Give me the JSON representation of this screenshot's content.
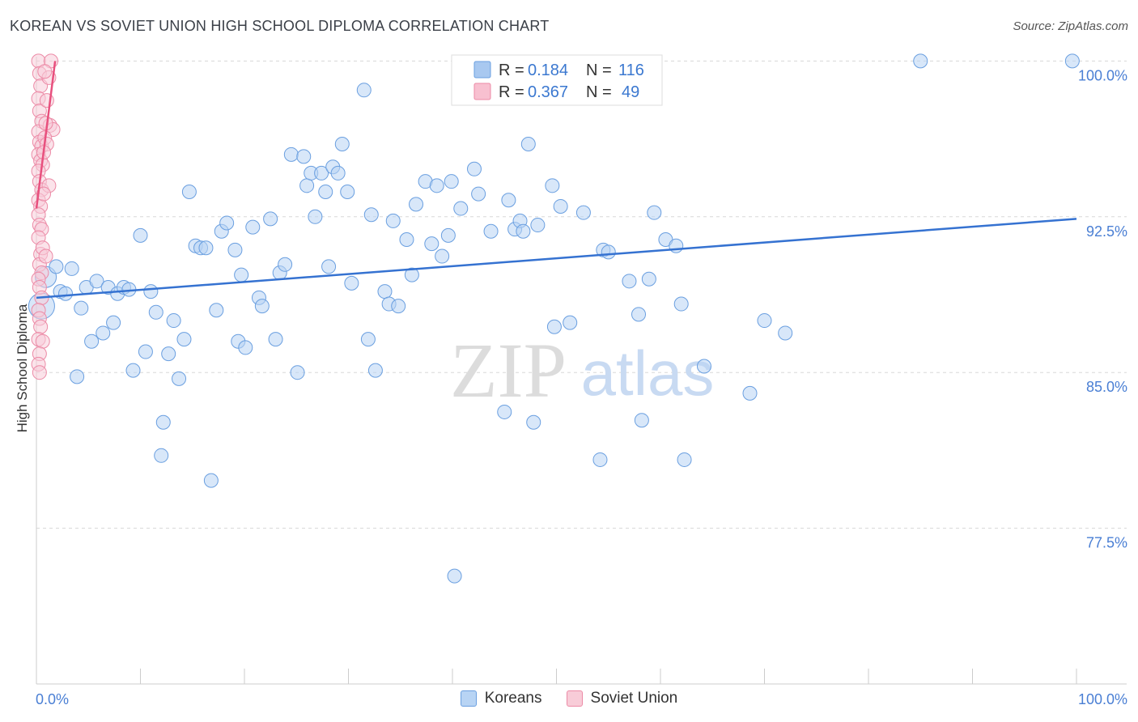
{
  "header": {
    "title": "KOREAN VS SOVIET UNION HIGH SCHOOL DIPLOMA CORRELATION CHART",
    "source": "Source: ZipAtlas.com"
  },
  "watermark": {
    "zip": "ZIP",
    "atlas": "atlas"
  },
  "legend": {
    "rows": [
      {
        "r_label": "R =",
        "r_value": "0.184",
        "n_label": "N =",
        "n_value": "116",
        "color": "#a8c8f0",
        "stroke": "#6a9fe0"
      },
      {
        "r_label": "R =",
        "r_value": "0.367",
        "n_label": "N =",
        "n_value": "49",
        "color": "#f8c0d0",
        "stroke": "#ec8aa6"
      }
    ],
    "bottom": [
      {
        "label": "Koreans",
        "color": "#b8d4f4",
        "stroke": "#6a9fe0"
      },
      {
        "label": "Soviet Union",
        "color": "#f8ccd8",
        "stroke": "#ec8aa6"
      }
    ]
  },
  "chart_data": {
    "type": "scatter",
    "title": "KOREAN VS SOVIET UNION HIGH SCHOOL DIPLOMA CORRELATION CHART",
    "xlabel": "",
    "ylabel": "High School Diploma",
    "xlim": [
      0,
      100
    ],
    "ylim": [
      70,
      100.6
    ],
    "x_tick_labels": [
      "0.0%",
      "100.0%"
    ],
    "y_ticks": [
      77.5,
      85.0,
      92.5,
      100.0
    ],
    "y_tick_labels": [
      "77.5%",
      "85.0%",
      "92.5%",
      "100.0%"
    ],
    "series": [
      {
        "name": "Koreans",
        "color": "#6a9fe0",
        "fill": "#b8d4f4",
        "trend": {
          "x": [
            0,
            100
          ],
          "y": [
            88.6,
            92.4
          ]
        },
        "points": [
          [
            0.5,
            88.2
          ],
          [
            0.9,
            89.6
          ],
          [
            1.9,
            90.1
          ],
          [
            2.3,
            88.9
          ],
          [
            2.8,
            88.8
          ],
          [
            3.4,
            90.0
          ],
          [
            3.9,
            84.8
          ],
          [
            4.3,
            88.1
          ],
          [
            4.8,
            89.1
          ],
          [
            5.3,
            86.5
          ],
          [
            5.8,
            89.4
          ],
          [
            6.4,
            86.9
          ],
          [
            6.9,
            89.1
          ],
          [
            7.4,
            87.4
          ],
          [
            7.8,
            88.8
          ],
          [
            8.4,
            89.1
          ],
          [
            8.9,
            89.0
          ],
          [
            9.3,
            85.1
          ],
          [
            10.0,
            91.6
          ],
          [
            10.5,
            86.0
          ],
          [
            11.0,
            88.9
          ],
          [
            11.5,
            87.9
          ],
          [
            12.0,
            81.0
          ],
          [
            12.2,
            82.6
          ],
          [
            12.7,
            85.9
          ],
          [
            13.2,
            87.5
          ],
          [
            13.7,
            84.7
          ],
          [
            14.2,
            86.6
          ],
          [
            14.7,
            93.7
          ],
          [
            15.3,
            91.1
          ],
          [
            15.8,
            91.0
          ],
          [
            16.3,
            91.0
          ],
          [
            16.8,
            79.8
          ],
          [
            17.3,
            88.0
          ],
          [
            17.8,
            91.8
          ],
          [
            18.3,
            92.2
          ],
          [
            19.1,
            90.9
          ],
          [
            19.4,
            86.5
          ],
          [
            19.7,
            89.7
          ],
          [
            20.1,
            86.2
          ],
          [
            20.8,
            92.0
          ],
          [
            21.4,
            88.6
          ],
          [
            21.7,
            88.2
          ],
          [
            22.5,
            92.4
          ],
          [
            23.0,
            86.6
          ],
          [
            23.4,
            89.8
          ],
          [
            23.9,
            90.2
          ],
          [
            24.5,
            95.5
          ],
          [
            25.1,
            85.0
          ],
          [
            25.7,
            95.4
          ],
          [
            26.0,
            94.0
          ],
          [
            26.4,
            94.6
          ],
          [
            26.8,
            92.5
          ],
          [
            27.4,
            94.6
          ],
          [
            27.8,
            93.7
          ],
          [
            28.1,
            90.1
          ],
          [
            28.5,
            94.9
          ],
          [
            29.0,
            94.6
          ],
          [
            29.4,
            96.0
          ],
          [
            29.9,
            93.7
          ],
          [
            30.3,
            89.3
          ],
          [
            31.5,
            98.6
          ],
          [
            31.9,
            86.6
          ],
          [
            32.2,
            92.6
          ],
          [
            32.6,
            85.1
          ],
          [
            33.5,
            88.9
          ],
          [
            33.9,
            88.3
          ],
          [
            34.3,
            92.3
          ],
          [
            34.8,
            88.2
          ],
          [
            35.6,
            91.4
          ],
          [
            36.1,
            89.7
          ],
          [
            36.5,
            93.1
          ],
          [
            37.4,
            94.2
          ],
          [
            38.0,
            91.2
          ],
          [
            38.5,
            94.0
          ],
          [
            39.0,
            90.6
          ],
          [
            39.6,
            91.6
          ],
          [
            39.9,
            94.2
          ],
          [
            40.8,
            92.9
          ],
          [
            42.1,
            94.8
          ],
          [
            42.5,
            93.6
          ],
          [
            43.7,
            91.8
          ],
          [
            45.0,
            83.1
          ],
          [
            45.4,
            93.3
          ],
          [
            46.0,
            91.9
          ],
          [
            46.5,
            92.3
          ],
          [
            46.8,
            91.8
          ],
          [
            47.3,
            96.0
          ],
          [
            47.8,
            82.6
          ],
          [
            48.2,
            92.1
          ],
          [
            49.6,
            94.0
          ],
          [
            49.8,
            87.2
          ],
          [
            50.4,
            93.0
          ],
          [
            51.3,
            87.4
          ],
          [
            52.6,
            92.7
          ],
          [
            54.2,
            80.8
          ],
          [
            54.5,
            90.9
          ],
          [
            55.0,
            90.8
          ],
          [
            57.0,
            89.4
          ],
          [
            57.9,
            87.8
          ],
          [
            58.2,
            82.7
          ],
          [
            58.9,
            89.5
          ],
          [
            59.4,
            92.7
          ],
          [
            60.5,
            91.4
          ],
          [
            61.5,
            91.1
          ],
          [
            62.0,
            88.3
          ],
          [
            62.3,
            80.8
          ],
          [
            64.2,
            85.3
          ],
          [
            68.6,
            84.0
          ],
          [
            70.0,
            87.5
          ],
          [
            72.0,
            86.9
          ],
          [
            85.0,
            100.0
          ],
          [
            99.6,
            100.0
          ],
          [
            40.2,
            75.2
          ]
        ]
      },
      {
        "name": "Soviet Union",
        "color": "#ec8aa6",
        "fill": "#f8ccd8",
        "trend": {
          "x": [
            0,
            1.8
          ],
          "y": [
            92.9,
            100.0
          ]
        },
        "points": [
          [
            0.2,
            100.0
          ],
          [
            0.3,
            99.4
          ],
          [
            0.4,
            98.8
          ],
          [
            0.2,
            98.2
          ],
          [
            0.3,
            97.6
          ],
          [
            0.5,
            97.1
          ],
          [
            0.2,
            96.6
          ],
          [
            0.3,
            96.1
          ],
          [
            0.5,
            95.9
          ],
          [
            0.2,
            95.5
          ],
          [
            0.4,
            95.2
          ],
          [
            0.6,
            95.0
          ],
          [
            0.2,
            94.7
          ],
          [
            0.3,
            94.2
          ],
          [
            0.5,
            93.8
          ],
          [
            0.2,
            93.3
          ],
          [
            0.4,
            93.0
          ],
          [
            0.2,
            92.6
          ],
          [
            0.3,
            92.1
          ],
          [
            0.5,
            91.9
          ],
          [
            0.2,
            91.5
          ],
          [
            0.4,
            90.7
          ],
          [
            0.3,
            90.2
          ],
          [
            0.5,
            89.8
          ],
          [
            0.2,
            89.5
          ],
          [
            0.3,
            89.1
          ],
          [
            0.5,
            88.6
          ],
          [
            0.2,
            88.0
          ],
          [
            0.3,
            87.6
          ],
          [
            0.4,
            87.2
          ],
          [
            0.2,
            86.6
          ],
          [
            0.6,
            86.5
          ],
          [
            0.3,
            85.9
          ],
          [
            0.2,
            85.4
          ],
          [
            0.3,
            85.0
          ],
          [
            1.0,
            98.1
          ],
          [
            1.3,
            96.9
          ],
          [
            1.6,
            96.7
          ],
          [
            1.2,
            99.2
          ],
          [
            0.8,
            96.3
          ],
          [
            0.9,
            97.0
          ],
          [
            1.0,
            96.0
          ],
          [
            0.7,
            95.6
          ],
          [
            1.2,
            94.0
          ],
          [
            0.6,
            91.0
          ],
          [
            0.9,
            90.6
          ],
          [
            0.7,
            93.6
          ],
          [
            1.4,
            100.0
          ],
          [
            0.8,
            99.5
          ]
        ]
      }
    ]
  }
}
